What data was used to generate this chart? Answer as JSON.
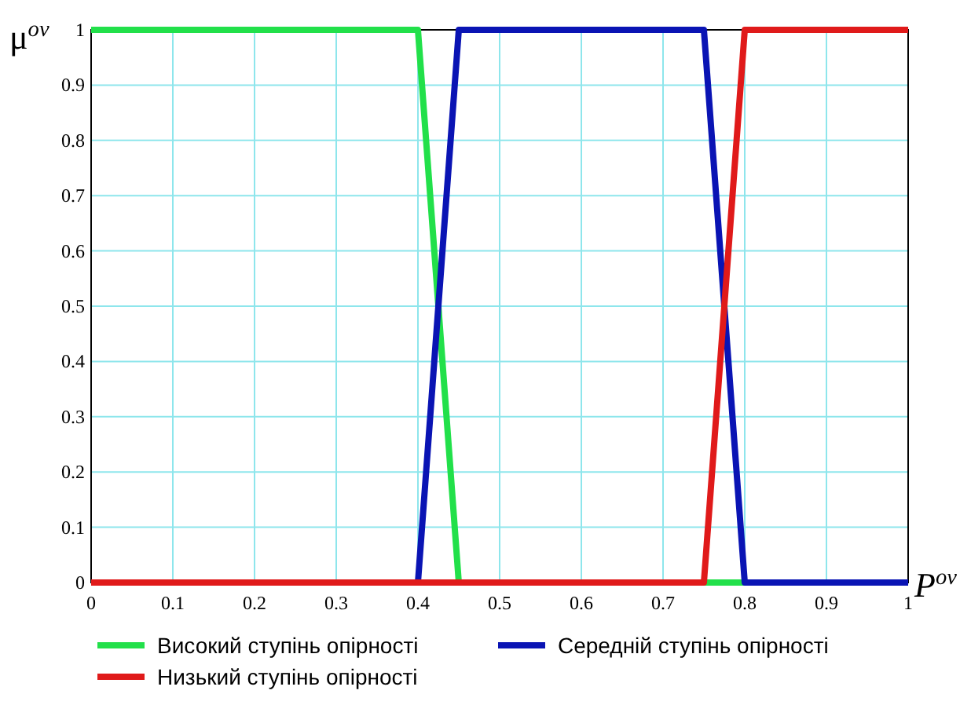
{
  "chart_data": {
    "type": "line",
    "xlabel": "P$^{ov}$",
    "ylabel": "μ$^{ov}$",
    "x": [
      0,
      0.4,
      0.45,
      0.75,
      0.8,
      1
    ],
    "series": [
      {
        "name": "Високий ступінь опірності",
        "color": "#22e04a",
        "values": [
          1,
          1,
          0,
          0,
          0,
          0
        ]
      },
      {
        "name": "Середній ступінь опірності",
        "color": "#0a14b4",
        "values": [
          0,
          0,
          1,
          1,
          0,
          0
        ]
      },
      {
        "name": "Низький ступінь опірності",
        "color": "#e01a1a",
        "values": [
          0,
          0,
          0,
          0,
          1,
          1
        ]
      }
    ],
    "xlim": [
      0,
      1
    ],
    "ylim": [
      0,
      1
    ],
    "xticks": [
      0,
      0.1,
      0.2,
      0.3,
      0.4,
      0.5,
      0.6,
      0.7,
      0.8,
      0.9,
      1
    ],
    "yticks": [
      0,
      0.1,
      0.2,
      0.3,
      0.4,
      0.5,
      0.6,
      0.7,
      0.8,
      0.9,
      1
    ],
    "grid": true,
    "legend": "bottom",
    "line_style": "solid",
    "marker": "none"
  }
}
